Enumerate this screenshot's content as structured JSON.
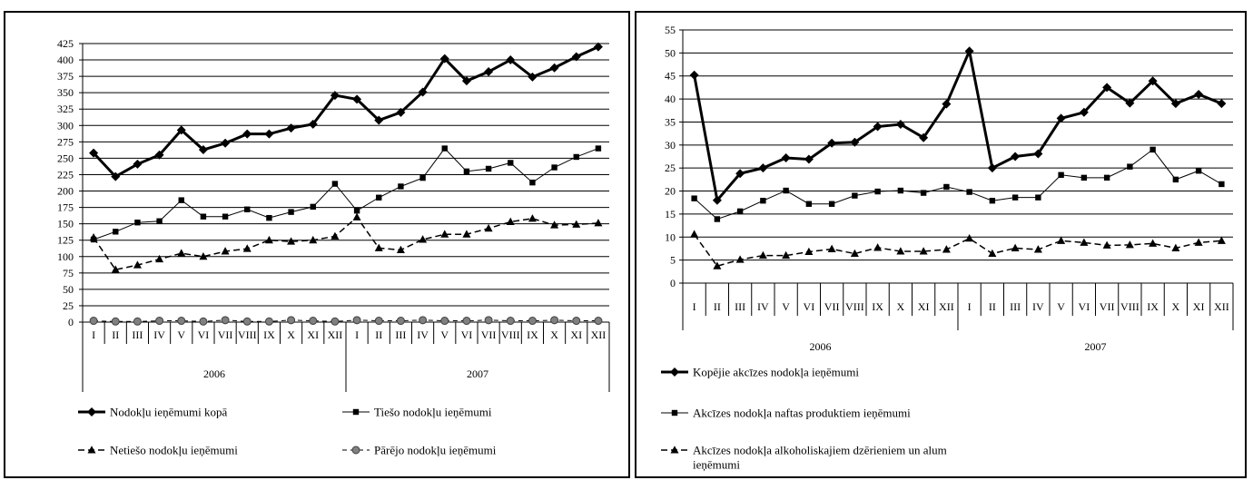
{
  "chart_data": [
    {
      "type": "line",
      "title": "",
      "xlabel": "",
      "ylabel": "",
      "ylim": [
        0,
        425
      ],
      "yticks": [
        0,
        25,
        50,
        75,
        100,
        125,
        150,
        175,
        200,
        225,
        250,
        275,
        300,
        325,
        350,
        375,
        400,
        425
      ],
      "months": [
        "I",
        "II",
        "III",
        "IV",
        "V",
        "VI",
        "VII",
        "VIII",
        "IX",
        "X",
        "XI",
        "XII"
      ],
      "years": [
        "2006",
        "2007"
      ],
      "grid": true,
      "legend_position": "bottom",
      "series": [
        {
          "name": "Nodokļu ieņēmumi kopā",
          "marker": "diamond",
          "values": [
            258,
            222,
            241,
            255,
            293,
            263,
            273,
            287,
            287,
            296,
            302,
            346,
            340,
            308,
            320,
            351,
            402,
            368,
            382,
            400,
            374,
            388,
            405,
            420
          ]
        },
        {
          "name": "Tiešo nodokļu ieņēmumi",
          "marker": "square",
          "values": [
            126,
            138,
            152,
            154,
            186,
            161,
            161,
            172,
            159,
            168,
            176,
            211,
            170,
            190,
            207,
            220,
            265,
            230,
            234,
            243,
            213,
            236,
            252,
            265
          ]
        },
        {
          "name": "Netiešo nodokļu ieņēmumi",
          "marker": "triangle",
          "values": [
            129,
            80,
            87,
            96,
            105,
            100,
            108,
            112,
            125,
            123,
            125,
            131,
            160,
            113,
            110,
            126,
            134,
            134,
            143,
            153,
            158,
            148,
            149,
            151
          ]
        },
        {
          "name": "Pārējo nodokļu ieņēmumi",
          "marker": "circle",
          "values": [
            2,
            1,
            1,
            2,
            2,
            1,
            3,
            1,
            1,
            3,
            2,
            1,
            3,
            2,
            2,
            3,
            2,
            2,
            3,
            2,
            2,
            3,
            2,
            2
          ]
        }
      ]
    },
    {
      "type": "line",
      "title": "",
      "xlabel": "",
      "ylabel": "",
      "ylim": [
        0,
        55
      ],
      "yticks": [
        0,
        5,
        10,
        15,
        20,
        25,
        30,
        35,
        40,
        45,
        50,
        55
      ],
      "months": [
        "I",
        "II",
        "III",
        "IV",
        "V",
        "VI",
        "VII",
        "VIII",
        "IX",
        "X",
        "XI",
        "XII"
      ],
      "years": [
        "2006",
        "2007"
      ],
      "grid": true,
      "legend_position": "bottom",
      "series": [
        {
          "name": "Kopējie akcīzes nodokļa ieņēmumi",
          "marker": "diamond",
          "values": [
            45.2,
            18.0,
            23.8,
            25.0,
            27.2,
            26.9,
            30.4,
            30.6,
            34.0,
            34.5,
            31.6,
            38.9,
            50.4,
            25.0,
            27.5,
            28.1,
            35.8,
            37.1,
            42.5,
            39.1,
            43.9,
            39.0,
            41.0,
            39.0
          ]
        },
        {
          "name": "Akcīzes nodokļa naftas produktiem ieņēmumi",
          "marker": "square",
          "values": [
            18.4,
            13.9,
            15.6,
            17.9,
            20.1,
            17.2,
            17.2,
            19.0,
            19.9,
            20.1,
            19.6,
            20.9,
            19.8,
            17.9,
            18.6,
            18.6,
            23.5,
            22.9,
            22.9,
            25.3,
            29.0,
            22.5,
            24.4,
            21.5
          ]
        },
        {
          "name": "Akcīzes nodokļa alkoholiskajiem dzērieniem un alum ieņēmumi",
          "marker": "triangle",
          "values": [
            10.6,
            3.7,
            5.1,
            6.0,
            6.0,
            6.8,
            7.4,
            6.4,
            7.7,
            6.9,
            6.9,
            7.3,
            9.7,
            6.4,
            7.6,
            7.3,
            9.2,
            8.8,
            8.2,
            8.3,
            8.6,
            7.6,
            8.8,
            9.2
          ]
        }
      ]
    }
  ]
}
